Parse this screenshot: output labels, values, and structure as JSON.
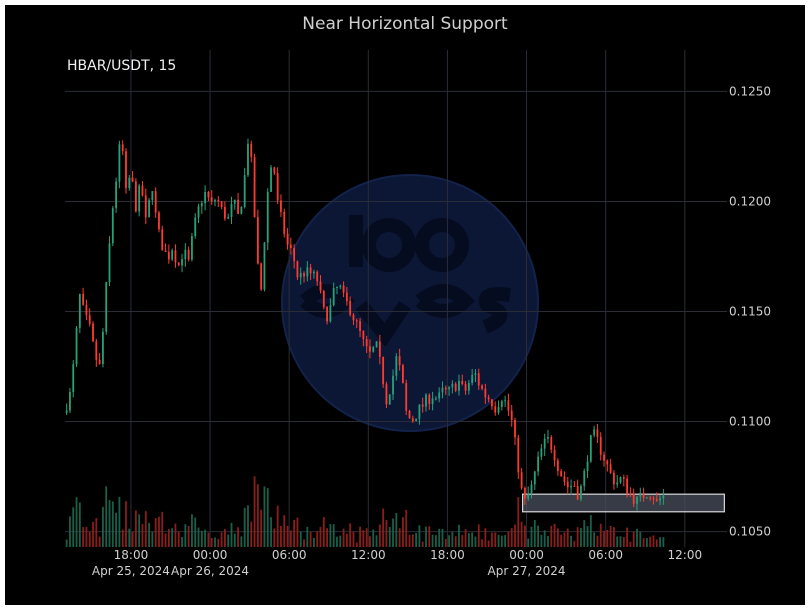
{
  "chart_data": {
    "type": "candlestick",
    "title": "Near Horizontal Support",
    "symbol_label": "HBAR/USDT, 15",
    "y_ticks": [
      "0.1250",
      "0.1200",
      "0.1150",
      "0.1100",
      "0.1050"
    ],
    "ylim": [
      0.1043,
      0.1262
    ],
    "x_ticks": [
      {
        "time": "18:00",
        "date": "Apr 25, 2024",
        "hour": 18
      },
      {
        "time": "00:00",
        "date": "Apr 26, 2024",
        "hour": 24
      },
      {
        "time": "06:00",
        "date": "",
        "hour": 30
      },
      {
        "time": "12:00",
        "date": "",
        "hour": 36
      },
      {
        "time": "18:00",
        "date": "",
        "hour": 42
      },
      {
        "time": "00:00",
        "date": "Apr 27, 2024",
        "hour": 48
      },
      {
        "time": "06:00",
        "date": "",
        "hour": 54
      },
      {
        "time": "12:00",
        "date": "",
        "hour": 60
      }
    ],
    "xlim_hours": [
      13.0,
      63.2
    ],
    "price_path": [
      [
        13.0,
        0.1104
      ],
      [
        13.5,
        0.1112
      ],
      [
        13.9,
        0.1132
      ],
      [
        14.2,
        0.1158
      ],
      [
        14.6,
        0.1148
      ],
      [
        15.0,
        0.1142
      ],
      [
        15.4,
        0.113
      ],
      [
        15.8,
        0.1124
      ],
      [
        16.3,
        0.1165
      ],
      [
        16.7,
        0.1195
      ],
      [
        17.1,
        0.1215
      ],
      [
        17.4,
        0.1232
      ],
      [
        17.7,
        0.1202
      ],
      [
        18.1,
        0.1213
      ],
      [
        18.5,
        0.1198
      ],
      [
        18.9,
        0.1208
      ],
      [
        19.3,
        0.1188
      ],
      [
        19.7,
        0.121
      ],
      [
        20.1,
        0.1188
      ],
      [
        20.5,
        0.118
      ],
      [
        20.9,
        0.1174
      ],
      [
        21.3,
        0.118
      ],
      [
        21.7,
        0.117
      ],
      [
        22.1,
        0.1178
      ],
      [
        22.5,
        0.1172
      ],
      [
        22.9,
        0.1188
      ],
      [
        23.4,
        0.12
      ],
      [
        23.8,
        0.1204
      ],
      [
        24.2,
        0.1198
      ],
      [
        24.6,
        0.1202
      ],
      [
        25.0,
        0.1196
      ],
      [
        25.5,
        0.1192
      ],
      [
        25.9,
        0.12
      ],
      [
        26.3,
        0.1192
      ],
      [
        26.7,
        0.1208
      ],
      [
        27.0,
        0.1228
      ],
      [
        27.3,
        0.1215
      ],
      [
        27.7,
        0.1172
      ],
      [
        28.0,
        0.116
      ],
      [
        28.3,
        0.1188
      ],
      [
        28.6,
        0.1212
      ],
      [
        28.9,
        0.122
      ],
      [
        29.2,
        0.12
      ],
      [
        29.6,
        0.119
      ],
      [
        30.0,
        0.118
      ],
      [
        30.4,
        0.1176
      ],
      [
        30.8,
        0.1165
      ],
      [
        31.3,
        0.1168
      ],
      [
        31.8,
        0.1167
      ],
      [
        32.3,
        0.1164
      ],
      [
        32.7,
        0.115
      ],
      [
        33.1,
        0.1148
      ],
      [
        33.5,
        0.1158
      ],
      [
        33.9,
        0.1162
      ],
      [
        34.3,
        0.1155
      ],
      [
        34.7,
        0.1152
      ],
      [
        35.1,
        0.1146
      ],
      [
        35.5,
        0.114
      ],
      [
        35.9,
        0.1133
      ],
      [
        36.3,
        0.113
      ],
      [
        36.7,
        0.1135
      ],
      [
        37.1,
        0.1124
      ],
      [
        37.5,
        0.111
      ],
      [
        37.9,
        0.1118
      ],
      [
        38.3,
        0.113
      ],
      [
        38.7,
        0.1118
      ],
      [
        39.0,
        0.1104
      ],
      [
        39.4,
        0.11
      ],
      [
        39.8,
        0.1104
      ],
      [
        40.2,
        0.1107
      ],
      [
        40.6,
        0.111
      ],
      [
        41.0,
        0.1112
      ],
      [
        41.4,
        0.111
      ],
      [
        41.8,
        0.1114
      ],
      [
        42.2,
        0.1113
      ],
      [
        42.6,
        0.1116
      ],
      [
        43.0,
        0.1118
      ],
      [
        43.4,
        0.1113
      ],
      [
        43.8,
        0.1118
      ],
      [
        44.2,
        0.1122
      ],
      [
        44.6,
        0.1116
      ],
      [
        45.0,
        0.1112
      ],
      [
        45.4,
        0.111
      ],
      [
        45.8,
        0.1106
      ],
      [
        46.2,
        0.1112
      ],
      [
        46.6,
        0.1108
      ],
      [
        47.0,
        0.11
      ],
      [
        47.3,
        0.1088
      ],
      [
        47.6,
        0.1075
      ],
      [
        47.9,
        0.1062
      ],
      [
        48.2,
        0.1066
      ],
      [
        48.5,
        0.107
      ],
      [
        48.9,
        0.108
      ],
      [
        49.3,
        0.1088
      ],
      [
        49.7,
        0.1092
      ],
      [
        50.1,
        0.1088
      ],
      [
        50.5,
        0.108
      ],
      [
        50.9,
        0.1074
      ],
      [
        51.3,
        0.107
      ],
      [
        51.7,
        0.1072
      ],
      [
        52.1,
        0.1066
      ],
      [
        52.5,
        0.1076
      ],
      [
        52.9,
        0.109
      ],
      [
        53.3,
        0.1094
      ],
      [
        53.7,
        0.1088
      ],
      [
        54.1,
        0.1082
      ],
      [
        54.5,
        0.1076
      ],
      [
        54.9,
        0.1072
      ],
      [
        55.3,
        0.1074
      ],
      [
        55.7,
        0.107
      ],
      [
        56.1,
        0.1066
      ],
      [
        56.5,
        0.1064
      ],
      [
        56.9,
        0.1066
      ],
      [
        57.3,
        0.1068
      ],
      [
        57.7,
        0.1067
      ],
      [
        58.0,
        0.1063
      ],
      [
        58.4,
        0.1066
      ]
    ],
    "support_zone": {
      "low": 0.1059,
      "high": 0.1067,
      "from_hour": 47.7,
      "to_hour": 63.0
    },
    "colors": {
      "background": "#000000",
      "up": "#26a17b",
      "down": "#ff3b30",
      "grid": "#2a2d36",
      "zone_fill": "#4a4f5c",
      "zone_border": "#d8d8d8",
      "watermark": "#0d1a3a"
    }
  }
}
